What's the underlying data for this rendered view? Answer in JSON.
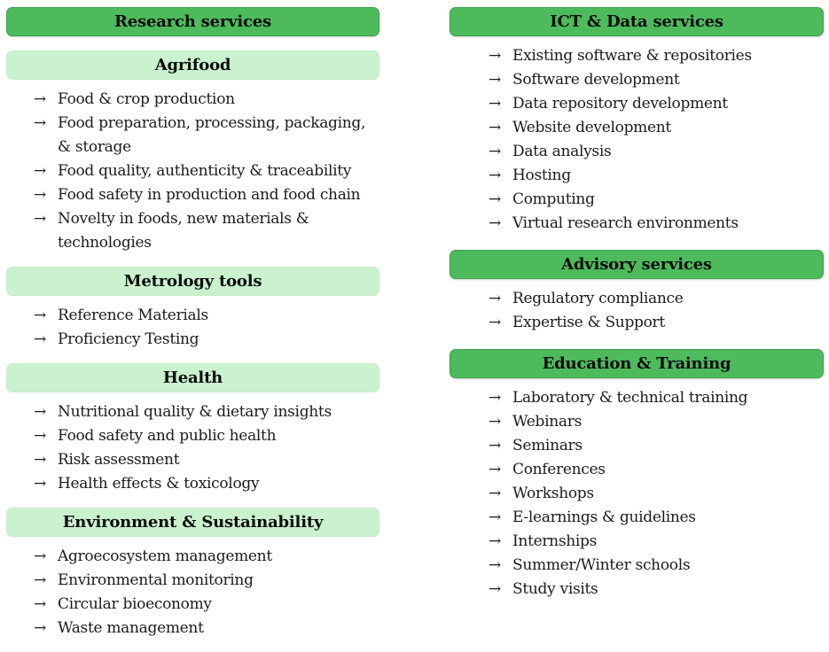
{
  "arrow": "→",
  "colors": {
    "header_green": "#4dbb5c",
    "header_green_border": "#3fa050",
    "subheader_green": "#cbf2cf",
    "text": "#1b1b1b",
    "background": "#ffffff"
  },
  "left": {
    "header": "Research services",
    "groups": [
      {
        "title": "Agrifood",
        "items": [
          "Food & crop production",
          "Food preparation, processing, packaging, & storage",
          "Food quality, authenticity & traceability",
          "Food safety in production and food chain",
          "Novelty in foods, new materials & technologies"
        ]
      },
      {
        "title": "Metrology tools",
        "items": [
          "Reference Materials",
          "Proficiency Testing"
        ]
      },
      {
        "title": "Health",
        "items": [
          "Nutritional quality & dietary insights",
          "Food safety and public health",
          "Risk assessment",
          "Health effects & toxicology"
        ]
      },
      {
        "title": "Environment & Sustainability",
        "items": [
          "Agroecosystem management",
          "Environmental monitoring",
          "Circular bioeconomy",
          "Waste management"
        ]
      }
    ]
  },
  "right": {
    "sections": [
      {
        "title": "ICT & Data services",
        "items": [
          "Existing software & repositories",
          "Software development",
          "Data repository development",
          "Website development",
          "Data analysis",
          "Hosting",
          "Computing",
          "Virtual research environments"
        ]
      },
      {
        "title": "Advisory services",
        "items": [
          "Regulatory compliance",
          "Expertise & Support"
        ]
      },
      {
        "title": "Education & Training",
        "items": [
          "Laboratory & technical training",
          "Webinars",
          "Seminars",
          "Conferences",
          "Workshops",
          "E-learnings & guidelines",
          "Internships",
          "Summer/Winter schools",
          "Study visits"
        ]
      }
    ]
  }
}
